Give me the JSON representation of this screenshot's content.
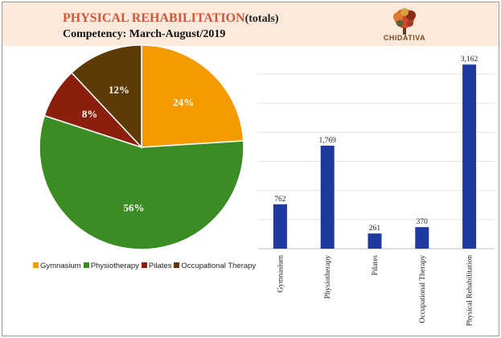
{
  "header": {
    "title": "PHYSICAL REHABILITATION",
    "title_suffix": "(totals)",
    "subtitle": "Competency: March-August/2019",
    "logo_text": "CHIDATIVA"
  },
  "chart_data": [
    {
      "type": "pie",
      "slices": [
        {
          "label": "Gymnasium",
          "value": 24,
          "display": "24%",
          "color": "#f59b00"
        },
        {
          "label": "Physiotherapy",
          "value": 56,
          "display": "56%",
          "color": "#3c8c25"
        },
        {
          "label": "Pilates",
          "value": 8,
          "display": "8%",
          "color": "#8b1e0c"
        },
        {
          "label": "Occupational Therapy",
          "value": 12,
          "display": "12%",
          "color": "#5e3a06"
        }
      ],
      "legend_position": "bottom"
    },
    {
      "type": "bar",
      "categories": [
        "Gymnasium",
        "Physiotherapy",
        "Pilates",
        "Occupational Therapy",
        "Physical Rehabilitation"
      ],
      "values": [
        762,
        1769,
        261,
        370,
        3162
      ],
      "value_labels": [
        "762",
        "1,769",
        "261",
        "370",
        "3,162"
      ],
      "ylim": [
        0,
        3400
      ],
      "grid": true,
      "color": "#1f3a9e"
    }
  ]
}
